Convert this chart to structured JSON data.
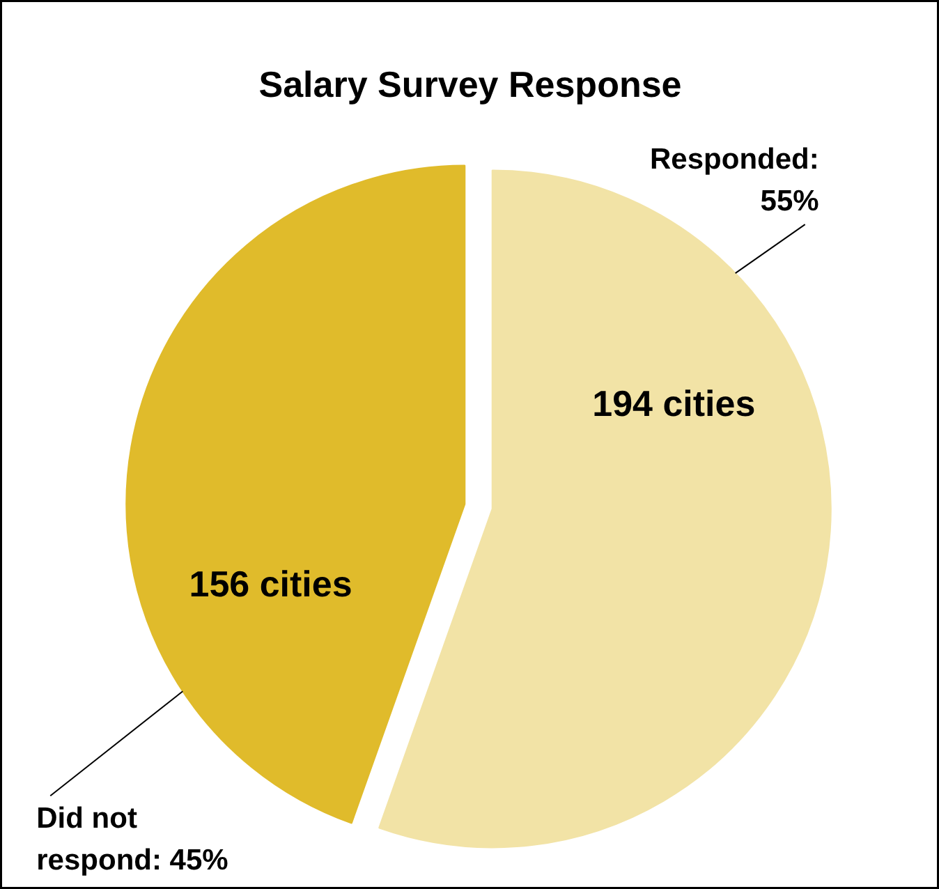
{
  "chart_data": {
    "type": "pie",
    "title": "Salary Survey Response",
    "categories": [
      "Responded: 55%",
      "Did not respond: 45%"
    ],
    "values": [
      194,
      156
    ],
    "value_labels": [
      "194 cities",
      "156 cities"
    ],
    "colors": [
      "#f2e3a6",
      "#e0bb2b"
    ]
  }
}
